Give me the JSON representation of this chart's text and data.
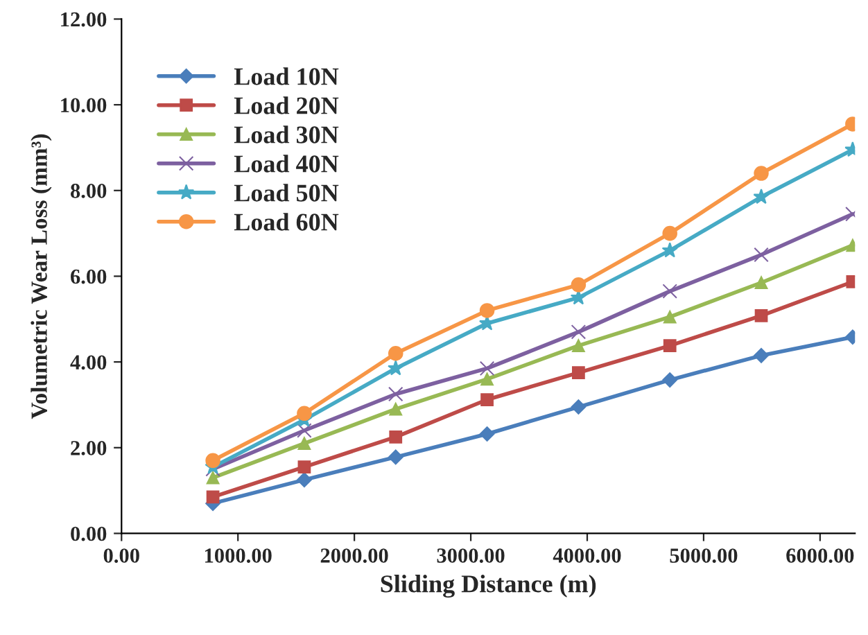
{
  "chart_data": {
    "type": "line",
    "xlabel": "Sliding Distance (m)",
    "ylabel": "Volumetric Wear Loss (mm³)",
    "x": [
      785,
      1570,
      2355,
      3140,
      3925,
      4710,
      5495,
      6280
    ],
    "series": [
      {
        "name": "Load 10N",
        "color": "#4a7ebb",
        "marker": "diamond",
        "values": [
          0.7,
          1.25,
          1.78,
          2.32,
          2.95,
          3.58,
          4.15,
          4.58
        ]
      },
      {
        "name": "Load 20N",
        "color": "#be4b48",
        "marker": "square",
        "values": [
          0.85,
          1.55,
          2.25,
          3.12,
          3.75,
          4.38,
          5.08,
          5.87
        ]
      },
      {
        "name": "Load 30N",
        "color": "#98b954",
        "marker": "triangle",
        "values": [
          1.3,
          2.1,
          2.9,
          3.6,
          4.38,
          5.05,
          5.85,
          6.72
        ]
      },
      {
        "name": "Load 40N",
        "color": "#7d60a0",
        "marker": "cross",
        "values": [
          1.5,
          2.4,
          3.25,
          3.85,
          4.7,
          5.65,
          6.5,
          7.45
        ]
      },
      {
        "name": "Load 50N",
        "color": "#46aac5",
        "marker": "star",
        "values": [
          1.55,
          2.65,
          3.85,
          4.9,
          5.5,
          6.6,
          7.85,
          8.95
        ]
      },
      {
        "name": "Load 60N",
        "color": "#f79646",
        "marker": "circle",
        "values": [
          1.7,
          2.8,
          4.2,
          5.2,
          5.8,
          7.0,
          8.4,
          9.55
        ]
      }
    ],
    "xlim": [
      0,
      6300
    ],
    "xticks": [
      {
        "value": 0,
        "label": "0.00"
      },
      {
        "value": 1000,
        "label": "1000.00"
      },
      {
        "value": 2000,
        "label": "2000.00"
      },
      {
        "value": 3000,
        "label": "3000.00"
      },
      {
        "value": 4000,
        "label": "4000.00"
      },
      {
        "value": 5000,
        "label": "5000.00"
      },
      {
        "value": 6000,
        "label": "6000.00"
      }
    ],
    "ylim": [
      0,
      12
    ],
    "yticks": [
      {
        "value": 0,
        "label": "0.00"
      },
      {
        "value": 2,
        "label": "2.00"
      },
      {
        "value": 4,
        "label": "4.00"
      },
      {
        "value": 6,
        "label": "6.00"
      },
      {
        "value": 8,
        "label": "8.00"
      },
      {
        "value": 10,
        "label": "10.00"
      },
      {
        "value": 12,
        "label": "12.00"
      }
    ],
    "legend": "top left",
    "grid": false,
    "line_style": "solid"
  }
}
